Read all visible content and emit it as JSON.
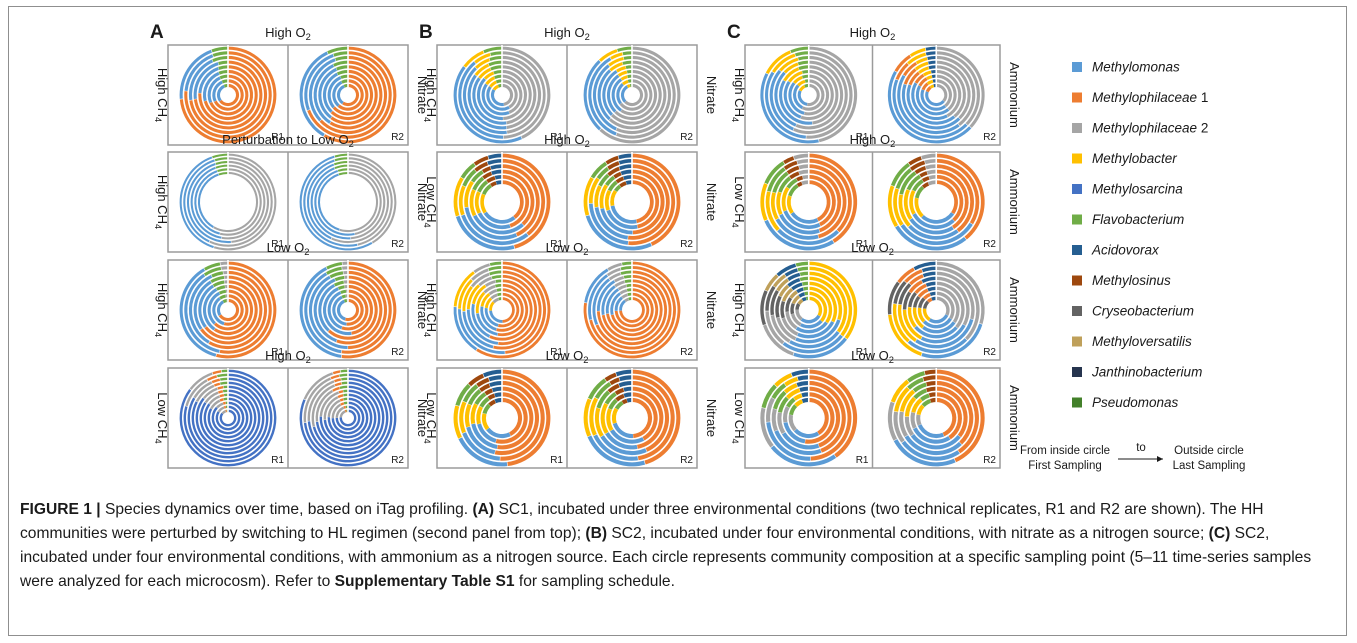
{
  "figure": {
    "sections": [
      {
        "letter": "A",
        "rows": [
          {
            "title": "High O",
            "title_sub": "2",
            "left": "High CH",
            "left_sub": "4",
            "right": "Nitrate",
            "preset": "A1"
          },
          {
            "title": "Perturbation to Low O",
            "title_sub": "2",
            "left": "High CH",
            "left_sub": "4",
            "right": "Nitrate",
            "preset": "A2"
          },
          {
            "title": "Low O",
            "title_sub": "2",
            "left": "High CH",
            "left_sub": "4",
            "right": "Nitrate",
            "preset": "A3"
          },
          {
            "title": "High O",
            "title_sub": "2",
            "left": "Low CH",
            "left_sub": "4",
            "right": "Nitrate",
            "preset": "A4"
          }
        ]
      },
      {
        "letter": "B",
        "rows": [
          {
            "title": "High O",
            "title_sub": "2",
            "left": "High CH",
            "left_sub": "4",
            "right": "Nitrate",
            "preset": "B1"
          },
          {
            "title": "High O",
            "title_sub": "2",
            "left": "Low CH",
            "left_sub": "4",
            "right": "Nitrate",
            "preset": "B2"
          },
          {
            "title": "Low O",
            "title_sub": "2",
            "left": "High CH",
            "left_sub": "4",
            "right": "Nitrate",
            "preset": "B3"
          },
          {
            "title": "Low O",
            "title_sub": "2",
            "left": "Low CH",
            "left_sub": "4",
            "right": "Nitrate",
            "preset": "B4"
          }
        ]
      },
      {
        "letter": "C",
        "rows": [
          {
            "title": "High O",
            "title_sub": "2",
            "left": "High CH",
            "left_sub": "4",
            "right": "Ammonium",
            "preset": "C1"
          },
          {
            "title": "High O",
            "title_sub": "2",
            "left": "Low CH",
            "left_sub": "4",
            "right": "Ammonium",
            "preset": "C2"
          },
          {
            "title": "Low O",
            "title_sub": "2",
            "left": "High CH",
            "left_sub": "4",
            "right": "Ammonium",
            "preset": "C3"
          },
          {
            "title": "Low O",
            "title_sub": "2",
            "left": "Low CH",
            "left_sub": "4",
            "right": "Ammonium",
            "preset": "C4"
          }
        ]
      }
    ],
    "replicates": [
      "R1",
      "R2"
    ],
    "legend": [
      {
        "name": "Methylomonas",
        "suffix": "",
        "color": "#5b9bd5"
      },
      {
        "name": "Methylophilaceae",
        "suffix": " 1",
        "color": "#ed7d31"
      },
      {
        "name": "Methylophilaceae",
        "suffix": " 2",
        "color": "#a5a5a5"
      },
      {
        "name": "Methylobacter",
        "suffix": "",
        "color": "#ffc000"
      },
      {
        "name": "Methylosarcina",
        "suffix": "",
        "color": "#4472c4"
      },
      {
        "name": "Flavobacterium",
        "suffix": "",
        "color": "#70ad47"
      },
      {
        "name": "Acidovorax",
        "suffix": "",
        "color": "#255e91"
      },
      {
        "name": "Methylosinus",
        "suffix": "",
        "color": "#9e480e"
      },
      {
        "name": "Cryseobacterium",
        "suffix": "",
        "color": "#636363"
      },
      {
        "name": "Methyloversatilis",
        "suffix": "",
        "color": "#bfa05a"
      },
      {
        "name": "Janthinobacterium",
        "suffix": "",
        "color": "#26344e"
      },
      {
        "name": "Pseudomonas",
        "suffix": "",
        "color": "#43802a"
      }
    ],
    "time_arrow": {
      "from_top": "From inside circle",
      "from_bottom": "First Sampling",
      "middle": "to",
      "to_top": "Outside circle",
      "to_bottom": "Last Sampling"
    }
  },
  "caption": {
    "label": "FIGURE 1 |",
    "intro": " Species dynamics over time, based on iTag profiling. ",
    "a_tag": "(A)",
    "a_text": " SC1, incubated under three environmental conditions (two technical replicates, R1 and R2 are shown). The HH communities were perturbed by switching to HL regimen (second panel from top); ",
    "b_tag": "(B)",
    "b_text": " SC2, incubated under four environmental conditions, with nitrate as a nitrogen source; ",
    "c_tag": "(C)",
    "c_text": " SC2, incubated under four environmental conditions, with ammonium as a nitrogen source. Each circle represents community composition at a specific sampling point (5–11 time-series samples were analyzed for each microcosm). Refer to ",
    "table_ref": "Supplementary Table S1",
    "end": " for sampling schedule."
  }
}
